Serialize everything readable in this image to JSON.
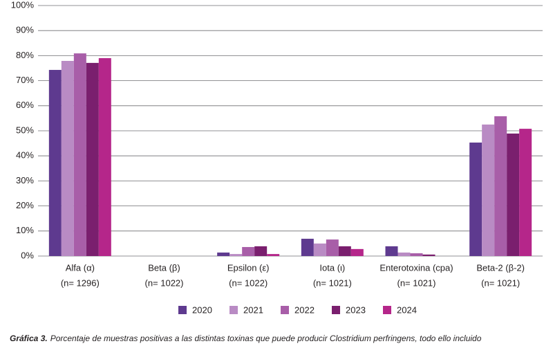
{
  "chart_data": {
    "type": "bar",
    "categories": [
      "Alfa (α)",
      "Beta (β)",
      "Epsilon (ε)",
      "Iota (ι)",
      "Enterotoxina (cpa)",
      "Beta-2 (β-2)"
    ],
    "category_notes": [
      "(n= 1296)",
      "(n= 1022)",
      "(n= 1022)",
      "(n= 1021)",
      "(n= 1021)",
      "(n= 1021)"
    ],
    "series": [
      {
        "name": "2020",
        "color": "#5e3a8f",
        "values": [
          74.3,
          0,
          1.4,
          6.9,
          3.9,
          45.3
        ]
      },
      {
        "name": "2021",
        "color": "#b98bc4",
        "values": [
          77.9,
          0,
          0.8,
          5.0,
          1.4,
          52.5
        ]
      },
      {
        "name": "2022",
        "color": "#a85ea8",
        "values": [
          80.9,
          0,
          3.6,
          6.6,
          1.1,
          55.8
        ]
      },
      {
        "name": "2023",
        "color": "#7a1f6e",
        "values": [
          77.1,
          0,
          3.9,
          3.9,
          0.6,
          48.9
        ]
      },
      {
        "name": "2024",
        "color": "#b5268a",
        "values": [
          79.0,
          0,
          0.8,
          2.8,
          0,
          50.8
        ]
      }
    ],
    "ylim": [
      0,
      100
    ],
    "yticks": [
      {
        "value": 0,
        "label": "0%"
      },
      {
        "value": 10,
        "label": "10%"
      },
      {
        "value": 20,
        "label": "20%"
      },
      {
        "value": 30,
        "label": "30%"
      },
      {
        "value": 40,
        "label": "40%"
      },
      {
        "value": 50,
        "label": "50%"
      },
      {
        "value": 60,
        "label": "60%"
      },
      {
        "value": 70,
        "label": "70%"
      },
      {
        "value": 80,
        "label": "80%"
      },
      {
        "value": 90,
        "label": "90%"
      },
      {
        "value": 100,
        "label": "100%"
      }
    ],
    "grid": true,
    "caption_label": "Gráfica 3.",
    "caption": "Porcentaje de muestras positivas a las distintas toxinas que puede producir Clostridium perfringens, todo ello incluido"
  }
}
